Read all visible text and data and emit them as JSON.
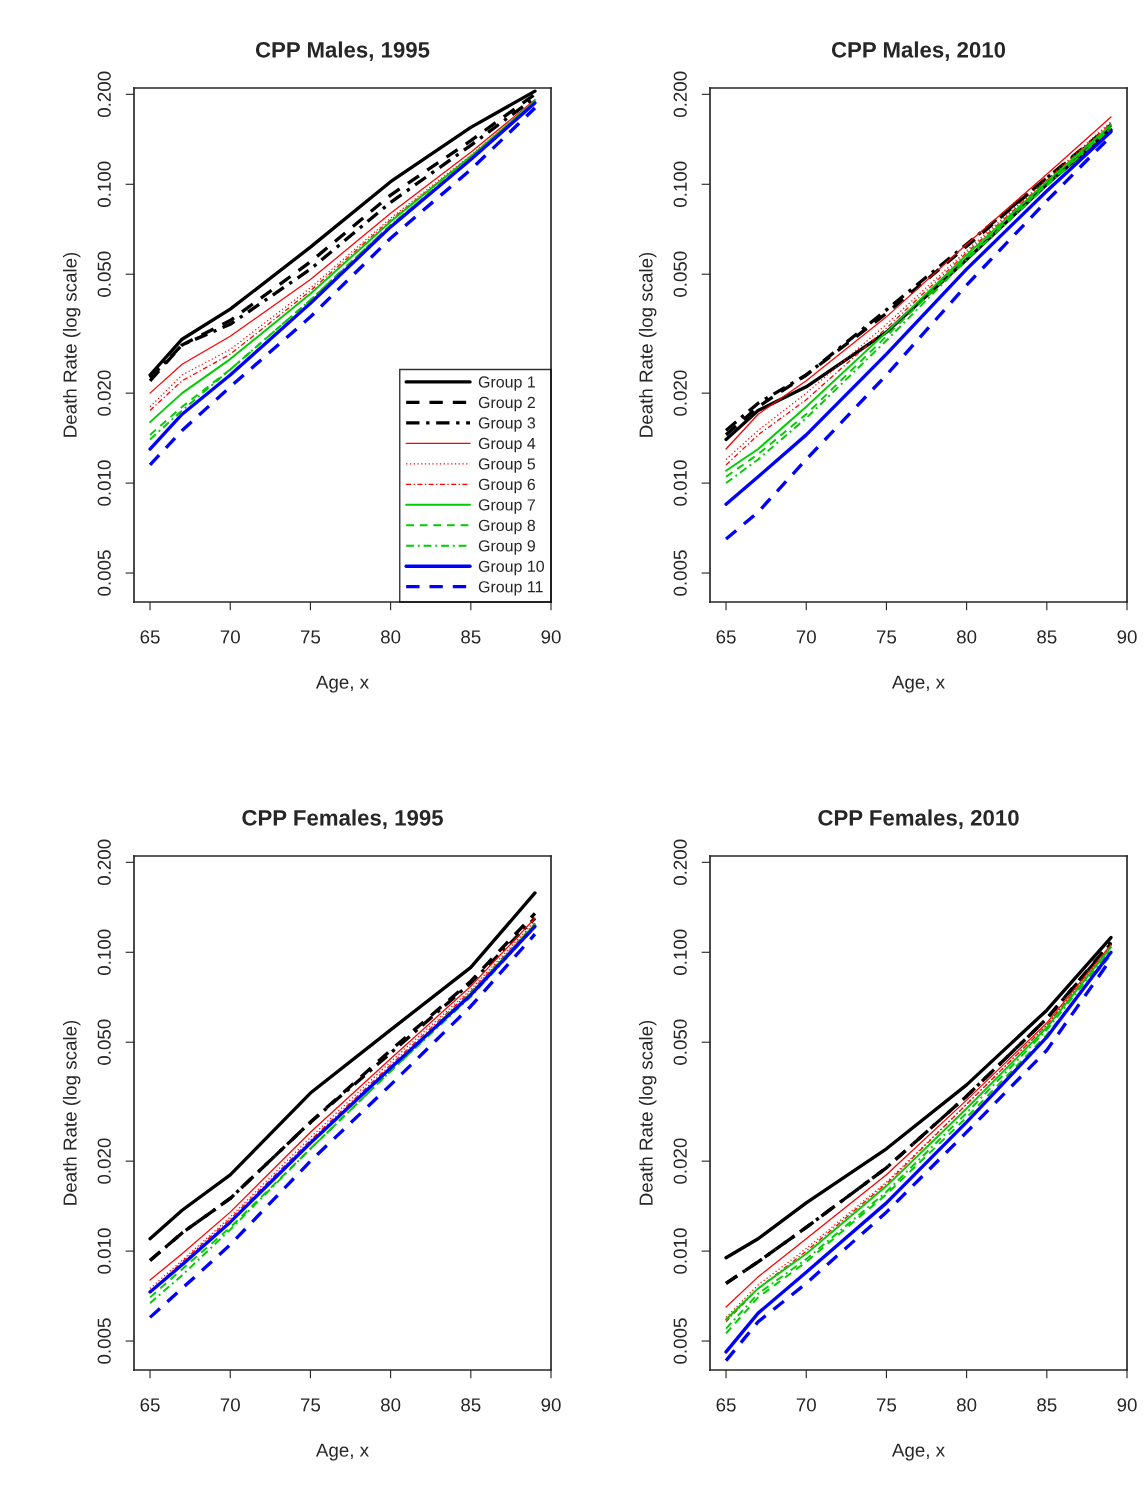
{
  "chart_data": [
    {
      "type": "line",
      "title": "CPP Males, 1995",
      "xlabel": "Age, x",
      "ylabel": "Death Rate (log scale)",
      "log": "y",
      "legend": "bottom right",
      "grid": false,
      "x": [
        65,
        67,
        70,
        75,
        80,
        85,
        89
      ],
      "xlim": [
        64,
        90
      ],
      "xticks": [
        65,
        70,
        75,
        80,
        85,
        90
      ],
      "ylim": [
        0.004,
        0.21
      ],
      "yticks": [
        {
          "value": 0.005,
          "label": "0.005"
        },
        {
          "value": 0.01,
          "label": "0.010"
        },
        {
          "value": 0.02,
          "label": "0.020"
        },
        {
          "value": 0.05,
          "label": "0.050"
        },
        {
          "value": 0.1,
          "label": "0.100"
        },
        {
          "value": 0.2,
          "label": "0.200"
        }
      ],
      "series": [
        {
          "name": "Group 1",
          "color": "#000000",
          "line_style": "solid",
          "values": [
            0.023,
            0.0303,
            0.0382,
            0.0616,
            0.102,
            0.155,
            0.205
          ]
        },
        {
          "name": "Group 2",
          "color": "#000000",
          "line_style": "dashed",
          "values": [
            0.022,
            0.029,
            0.035,
            0.055,
            0.092,
            0.14,
            0.2
          ]
        },
        {
          "name": "Group 3",
          "color": "#000000",
          "line_style": "dashdot",
          "values": [
            0.0225,
            0.029,
            0.034,
            0.052,
            0.087,
            0.135,
            0.195
          ]
        },
        {
          "name": "Group 4",
          "color": "#ff0000",
          "line_style": "solid",
          "values": [
            0.02,
            0.025,
            0.031,
            0.048,
            0.08,
            0.128,
            0.192
          ]
        },
        {
          "name": "Group 5",
          "color": "#ff0000",
          "line_style": "dotted",
          "values": [
            0.018,
            0.023,
            0.028,
            0.045,
            0.077,
            0.125,
            0.19
          ]
        },
        {
          "name": "Group 6",
          "color": "#ff0000",
          "line_style": "dashdot",
          "values": [
            0.0175,
            0.022,
            0.027,
            0.044,
            0.076,
            0.124,
            0.189
          ]
        },
        {
          "name": "Group 7",
          "color": "#00cd00",
          "line_style": "solid",
          "values": [
            0.016,
            0.02,
            0.026,
            0.043,
            0.075,
            0.124,
            0.19
          ]
        },
        {
          "name": "Group 8",
          "color": "#00cd00",
          "line_style": "dashed",
          "values": [
            0.0145,
            0.018,
            0.024,
            0.041,
            0.073,
            0.122,
            0.188
          ]
        },
        {
          "name": "Group 9",
          "color": "#00cd00",
          "line_style": "dashdot",
          "values": [
            0.014,
            0.0175,
            0.024,
            0.041,
            0.073,
            0.122,
            0.188
          ]
        },
        {
          "name": "Group 10",
          "color": "#0000ff",
          "line_style": "solid",
          "values": [
            0.013,
            0.017,
            0.023,
            0.04,
            0.072,
            0.121,
            0.187
          ]
        },
        {
          "name": "Group 11",
          "color": "#0000ff",
          "line_style": "dashed",
          "values": [
            0.0115,
            0.015,
            0.021,
            0.036,
            0.066,
            0.112,
            0.18
          ]
        }
      ]
    },
    {
      "type": "line",
      "title": "CPP Males, 2010",
      "xlabel": "Age, x",
      "ylabel": "Death Rate (log scale)",
      "log": "y",
      "grid": false,
      "x": [
        65,
        67,
        70,
        75,
        80,
        85,
        89
      ],
      "xlim": [
        64,
        90
      ],
      "xticks": [
        65,
        70,
        75,
        80,
        85,
        90
      ],
      "ylim": [
        0.004,
        0.21
      ],
      "yticks": [
        {
          "value": 0.005,
          "label": "0.005"
        },
        {
          "value": 0.01,
          "label": "0.010"
        },
        {
          "value": 0.02,
          "label": "0.020"
        },
        {
          "value": 0.05,
          "label": "0.050"
        },
        {
          "value": 0.1,
          "label": "0.100"
        },
        {
          "value": 0.2,
          "label": "0.200"
        }
      ],
      "series": [
        {
          "color": "#000000",
          "line_style": "solid",
          "values": [
            0.014,
            0.0175,
            0.021,
            0.032,
            0.056,
            0.1,
            0.152
          ]
        },
        {
          "color": "#000000",
          "line_style": "dashed",
          "values": [
            0.0145,
            0.018,
            0.023,
            0.037,
            0.062,
            0.105,
            0.158
          ]
        },
        {
          "color": "#000000",
          "line_style": "dashdot",
          "values": [
            0.015,
            0.0185,
            0.023,
            0.038,
            0.063,
            0.105,
            0.155
          ]
        },
        {
          "color": "#ff0000",
          "line_style": "solid",
          "values": [
            0.013,
            0.017,
            0.022,
            0.036,
            0.063,
            0.108,
            0.168
          ]
        },
        {
          "color": "#ff0000",
          "line_style": "dotted",
          "values": [
            0.012,
            0.015,
            0.02,
            0.034,
            0.06,
            0.104,
            0.162
          ]
        },
        {
          "color": "#ff0000",
          "line_style": "dashdot",
          "values": [
            0.0115,
            0.0145,
            0.019,
            0.033,
            0.059,
            0.103,
            0.16
          ]
        },
        {
          "color": "#00cd00",
          "line_style": "solid",
          "values": [
            0.011,
            0.013,
            0.018,
            0.032,
            0.058,
            0.102,
            0.158
          ]
        },
        {
          "color": "#00cd00",
          "line_style": "dashed",
          "values": [
            0.0105,
            0.0125,
            0.017,
            0.031,
            0.057,
            0.1,
            0.155
          ]
        },
        {
          "color": "#00cd00",
          "line_style": "dashdot",
          "values": [
            0.01,
            0.012,
            0.0165,
            0.03,
            0.056,
            0.099,
            0.154
          ]
        },
        {
          "color": "#0000ff",
          "line_style": "solid",
          "values": [
            0.0085,
            0.0105,
            0.0145,
            0.027,
            0.052,
            0.095,
            0.15
          ]
        },
        {
          "color": "#0000ff",
          "line_style": "dashed",
          "values": [
            0.0065,
            0.008,
            0.012,
            0.023,
            0.046,
            0.088,
            0.145
          ]
        }
      ]
    },
    {
      "type": "line",
      "title": "CPP Females, 1995",
      "xlabel": "Age, x",
      "ylabel": "Death Rate (log scale)",
      "log": "y",
      "grid": false,
      "x": [
        65,
        67,
        70,
        75,
        80,
        85,
        89
      ],
      "xlim": [
        64,
        90
      ],
      "xticks": [
        65,
        70,
        75,
        80,
        85,
        90
      ],
      "ylim": [
        0.004,
        0.21
      ],
      "yticks": [
        {
          "value": 0.005,
          "label": "0.005"
        },
        {
          "value": 0.01,
          "label": "0.010"
        },
        {
          "value": 0.02,
          "label": "0.020"
        },
        {
          "value": 0.05,
          "label": "0.050"
        },
        {
          "value": 0.1,
          "label": "0.100"
        },
        {
          "value": 0.2,
          "label": "0.200"
        }
      ],
      "series": [
        {
          "color": "#000000",
          "line_style": "solid",
          "values": [
            0.011,
            0.0137,
            0.018,
            0.0338,
            0.055,
            0.089,
            0.158
          ]
        },
        {
          "color": "#000000",
          "line_style": "dashed",
          "values": [
            0.0093,
            0.0115,
            0.015,
            0.027,
            0.047,
            0.08,
            0.135
          ]
        },
        {
          "color": "#000000",
          "line_style": "dashdot",
          "values": [
            0.0093,
            0.0115,
            0.015,
            0.027,
            0.046,
            0.079,
            0.13
          ]
        },
        {
          "color": "#ff0000",
          "line_style": "solid",
          "values": [
            0.008,
            0.0098,
            0.0135,
            0.025,
            0.044,
            0.077,
            0.13
          ]
        },
        {
          "color": "#ff0000",
          "line_style": "dotted",
          "values": [
            0.0075,
            0.0093,
            0.013,
            0.024,
            0.043,
            0.075,
            0.127
          ]
        },
        {
          "color": "#ff0000",
          "line_style": "dashdot",
          "values": [
            0.0073,
            0.0092,
            0.0128,
            0.0235,
            0.042,
            0.074,
            0.125
          ]
        },
        {
          "color": "#00cd00",
          "line_style": "solid",
          "values": [
            0.0073,
            0.009,
            0.0125,
            0.023,
            0.041,
            0.073,
            0.124
          ]
        },
        {
          "color": "#00cd00",
          "line_style": "dashed",
          "values": [
            0.007,
            0.0087,
            0.012,
            0.022,
            0.04,
            0.072,
            0.122
          ]
        },
        {
          "color": "#00cd00",
          "line_style": "dashdot",
          "values": [
            0.0067,
            0.0083,
            0.0118,
            0.022,
            0.04,
            0.071,
            0.121
          ]
        },
        {
          "color": "#0000ff",
          "line_style": "solid",
          "values": [
            0.0073,
            0.009,
            0.0125,
            0.023,
            0.041,
            0.072,
            0.122
          ]
        },
        {
          "color": "#0000ff",
          "line_style": "dashed",
          "values": [
            0.006,
            0.0075,
            0.0105,
            0.02,
            0.036,
            0.066,
            0.115
          ]
        }
      ]
    },
    {
      "type": "line",
      "title": "CPP Females, 2010",
      "xlabel": "Age, x",
      "ylabel": "Death Rate (log scale)",
      "log": "y",
      "grid": false,
      "x": [
        65,
        67,
        70,
        75,
        80,
        85,
        89
      ],
      "xlim": [
        64,
        90
      ],
      "xticks": [
        65,
        70,
        75,
        80,
        85,
        90
      ],
      "ylim": [
        0.004,
        0.21
      ],
      "yticks": [
        {
          "value": 0.005,
          "label": "0.005"
        },
        {
          "value": 0.01,
          "label": "0.010"
        },
        {
          "value": 0.02,
          "label": "0.020"
        },
        {
          "value": 0.05,
          "label": "0.050"
        },
        {
          "value": 0.1,
          "label": "0.100"
        },
        {
          "value": 0.2,
          "label": "0.200"
        }
      ],
      "series": [
        {
          "color": "#000000",
          "line_style": "solid",
          "values": [
            0.0095,
            0.011,
            0.0145,
            0.022,
            0.036,
            0.064,
            0.112
          ]
        },
        {
          "color": "#000000",
          "line_style": "dashed",
          "values": [
            0.0078,
            0.0092,
            0.012,
            0.019,
            0.033,
            0.06,
            0.108
          ]
        },
        {
          "color": "#000000",
          "line_style": "dashdot",
          "values": [
            0.0078,
            0.0092,
            0.012,
            0.019,
            0.033,
            0.06,
            0.107
          ]
        },
        {
          "color": "#ff0000",
          "line_style": "solid",
          "values": [
            0.0065,
            0.0082,
            0.011,
            0.018,
            0.032,
            0.058,
            0.106
          ]
        },
        {
          "color": "#ff0000",
          "line_style": "dotted",
          "values": [
            0.006,
            0.0077,
            0.0102,
            0.017,
            0.031,
            0.057,
            0.105
          ]
        },
        {
          "color": "#ff0000",
          "line_style": "dashdot",
          "values": [
            0.0058,
            0.0075,
            0.01,
            0.0168,
            0.031,
            0.057,
            0.104
          ]
        },
        {
          "color": "#00cd00",
          "line_style": "solid",
          "values": [
            0.0059,
            0.0075,
            0.0098,
            0.0165,
            0.03,
            0.056,
            0.104
          ]
        },
        {
          "color": "#00cd00",
          "line_style": "dashed",
          "values": [
            0.0053,
            0.007,
            0.0092,
            0.0155,
            0.028,
            0.053,
            0.098
          ]
        },
        {
          "color": "#00cd00",
          "line_style": "dashdot",
          "values": [
            0.0055,
            0.0072,
            0.0094,
            0.0158,
            0.029,
            0.055,
            0.102
          ]
        },
        {
          "color": "#0000ff",
          "line_style": "solid",
          "values": [
            0.0046,
            0.0062,
            0.0085,
            0.0145,
            0.027,
            0.052,
            0.1
          ]
        },
        {
          "color": "#0000ff",
          "line_style": "dashed",
          "values": [
            0.0043,
            0.0058,
            0.0078,
            0.0135,
            0.025,
            0.047,
            0.095
          ]
        }
      ]
    }
  ]
}
